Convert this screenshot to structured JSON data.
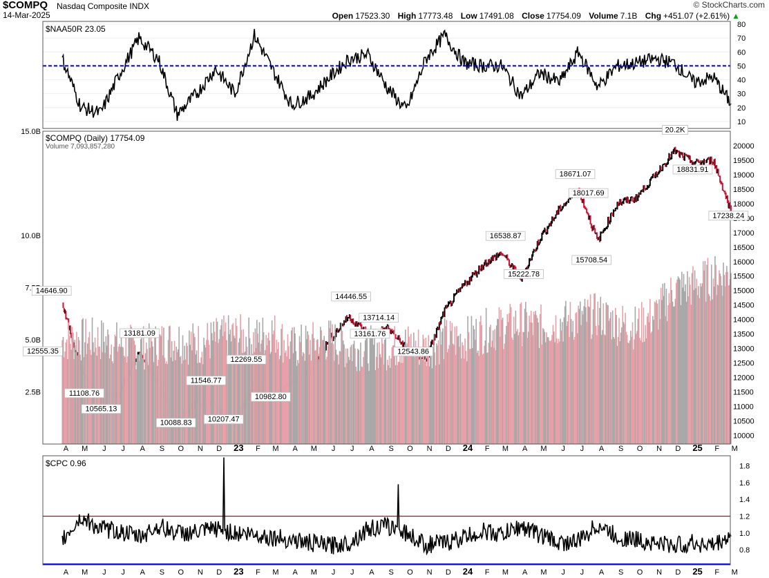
{
  "header": {
    "symbol": "$COMPQ",
    "name": "Nasdaq Composite INDX",
    "date": "14-Mar-2025",
    "brand": "© StockCharts.com",
    "open_label": "Open",
    "open": "17523.30",
    "high_label": "High",
    "high": "17773.48",
    "low_label": "Low",
    "low": "17491.08",
    "close_label": "Close",
    "close": "17754.09",
    "volume_label": "Volume",
    "volume": "7.1B",
    "chg_label": "Chg",
    "chg": "+451.07 (+2.61%)"
  },
  "colors": {
    "up": "#000000",
    "down": "#cc1133",
    "vol_up": "#a8a8a8",
    "vol_down": "#e8a0a8",
    "ref_blue": "#0000cc",
    "ref_red": "#cc0000"
  },
  "x_axis_labels": [
    "A",
    "M",
    "J",
    "J",
    "A",
    "S",
    "O",
    "N",
    "D",
    "23",
    "F",
    "M",
    "A",
    "M",
    "J",
    "J",
    "A",
    "S",
    "O",
    "N",
    "D",
    "24",
    "F",
    "M",
    "A",
    "M",
    "J",
    "J",
    "A",
    "S",
    "O",
    "N",
    "D",
    "25",
    "F",
    "M"
  ],
  "chart_data": [
    {
      "type": "line",
      "legend": "$NAA50R 23.05",
      "ylim": [
        5,
        82
      ],
      "y_ticks": [
        10,
        20,
        30,
        40,
        50,
        60,
        70,
        80
      ],
      "reference_line": 50,
      "x": [
        "2022-04",
        "2022-05",
        "2022-06",
        "2022-07",
        "2022-08",
        "2022-09",
        "2022-10",
        "2022-11",
        "2022-12",
        "2023-01",
        "2023-02",
        "2023-03",
        "2023-04",
        "2023-05",
        "2023-06",
        "2023-07",
        "2023-08",
        "2023-09",
        "2023-10",
        "2023-11",
        "2023-12",
        "2024-01",
        "2024-02",
        "2024-03",
        "2024-04",
        "2024-05",
        "2024-06",
        "2024-07",
        "2024-08",
        "2024-09",
        "2024-10",
        "2024-11",
        "2024-12",
        "2025-01",
        "2025-02",
        "2025-03"
      ],
      "values": [
        55,
        20,
        16,
        44,
        70,
        55,
        15,
        30,
        48,
        30,
        72,
        48,
        22,
        28,
        42,
        55,
        58,
        34,
        18,
        55,
        72,
        52,
        50,
        50,
        28,
        45,
        38,
        60,
        35,
        50,
        52,
        55,
        52,
        38,
        42,
        23
      ]
    },
    {
      "type": "line",
      "legend": "$COMPQ (Daily) 17754.09",
      "volume_legend": "Volume 7,093,857,280",
      "ylim": [
        9700,
        20500
      ],
      "y_ticks": [
        10000,
        10500,
        11000,
        11500,
        12000,
        12500,
        13000,
        13500,
        14000,
        14500,
        15000,
        15500,
        16000,
        16500,
        17000,
        17500,
        18000,
        18500,
        19000,
        19500,
        20000
      ],
      "x": [
        "2022-04",
        "2022-05",
        "2022-06",
        "2022-07",
        "2022-08",
        "2022-09",
        "2022-10",
        "2022-11",
        "2022-12",
        "2023-01",
        "2023-02",
        "2023-03",
        "2023-04",
        "2023-05",
        "2023-06",
        "2023-07",
        "2023-08",
        "2023-09",
        "2023-10",
        "2023-11",
        "2023-12",
        "2024-01",
        "2024-02",
        "2024-03",
        "2024-04",
        "2024-05",
        "2024-06",
        "2024-07",
        "2024-08",
        "2024-09",
        "2024-10",
        "2024-11",
        "2024-12",
        "2025-01",
        "2025-02",
        "2025-03"
      ],
      "values": [
        14500,
        12300,
        11100,
        11500,
        12800,
        11800,
        10500,
        11200,
        11000,
        10400,
        11900,
        11300,
        11800,
        12200,
        13300,
        14100,
        13500,
        13700,
        13000,
        12600,
        14300,
        15200,
        15900,
        16300,
        15400,
        16800,
        17800,
        18500,
        16700,
        18000,
        18200,
        19000,
        19800,
        19400,
        19500,
        17754
      ],
      "annotations": [
        {
          "x": "2022-03-29",
          "y": 14646.9,
          "label": "14646.90"
        },
        {
          "x": "2022-03-15",
          "y": 12555.35,
          "label": "12555.35"
        },
        {
          "x": "2022-05-20",
          "y": 11108.76,
          "label": "11108.76"
        },
        {
          "x": "2022-06-16",
          "y": 10565.13,
          "label": "10565.13"
        },
        {
          "x": "2022-08-16",
          "y": 13181.09,
          "label": "13181.09"
        },
        {
          "x": "2022-10-13",
          "y": 10088.83,
          "label": "10088.83"
        },
        {
          "x": "2022-11-30",
          "y": 11546.77,
          "label": "11546.77"
        },
        {
          "x": "2022-12-28",
          "y": 10207.47,
          "label": "10207.47"
        },
        {
          "x": "2023-02-02",
          "y": 12269.55,
          "label": "12269.55"
        },
        {
          "x": "2023-03-13",
          "y": 10982.8,
          "label": "10982.80"
        },
        {
          "x": "2023-07-19",
          "y": 14446.55,
          "label": "14446.55"
        },
        {
          "x": "2023-08-18",
          "y": 13161.76,
          "label": "13161.76"
        },
        {
          "x": "2023-09-01",
          "y": 13714.14,
          "label": "13714.14"
        },
        {
          "x": "2023-10-26",
          "y": 12543.86,
          "label": "12543.86"
        },
        {
          "x": "2024-03-21",
          "y": 16538.87,
          "label": "16538.87"
        },
        {
          "x": "2024-04-19",
          "y": 15222.78,
          "label": "15222.78"
        },
        {
          "x": "2024-07-10",
          "y": 18671.07,
          "label": "18671.07"
        },
        {
          "x": "2024-07-31",
          "y": 18017.69,
          "label": "18017.69"
        },
        {
          "x": "2024-08-05",
          "y": 15708.54,
          "label": "15708.54"
        },
        {
          "x": "2024-12-16",
          "y": 20200,
          "label": "20.2K"
        },
        {
          "x": "2025-01-13",
          "y": 18831.91,
          "label": "18831.91"
        },
        {
          "x": "2025-03-11",
          "y": 17238.24,
          "label": "17238.24"
        }
      ]
    },
    {
      "type": "bar",
      "name": "Volume",
      "ylim": [
        0,
        15
      ],
      "y_ticks": [
        {
          "v": 2.5,
          "label": "2.5B"
        },
        {
          "v": 5.0,
          "label": "5.0B"
        },
        {
          "v": 7.5,
          "label": "7.5B"
        },
        {
          "v": 10.0,
          "label": "10.0B"
        },
        {
          "v": 15.0,
          "label": "15.0B"
        }
      ],
      "x": [
        "2022-04",
        "2022-05",
        "2022-06",
        "2022-07",
        "2022-08",
        "2022-09",
        "2022-10",
        "2022-11",
        "2022-12",
        "2023-01",
        "2023-02",
        "2023-03",
        "2023-04",
        "2023-05",
        "2023-06",
        "2023-07",
        "2023-08",
        "2023-09",
        "2023-10",
        "2023-11",
        "2023-12",
        "2024-01",
        "2024-02",
        "2024-03",
        "2024-04",
        "2024-05",
        "2024-06",
        "2024-07",
        "2024-08",
        "2024-09",
        "2024-10",
        "2024-11",
        "2024-12",
        "2025-01",
        "2025-02",
        "2025-03"
      ],
      "values": [
        5.0,
        5.0,
        5.0,
        4.8,
        4.6,
        4.8,
        5.0,
        4.8,
        5.0,
        5.2,
        5.0,
        5.4,
        4.6,
        4.8,
        5.0,
        4.6,
        4.6,
        4.6,
        4.8,
        4.6,
        5.0,
        5.0,
        5.4,
        5.6,
        5.8,
        5.6,
        5.8,
        6.0,
        6.2,
        5.8,
        5.6,
        6.2,
        7.4,
        7.6,
        8.0,
        8.2
      ]
    },
    {
      "type": "line",
      "legend": "$CPC 0.96",
      "ylim": [
        0.62,
        1.92
      ],
      "y_ticks": [
        0.8,
        1.0,
        1.2,
        1.4,
        1.6,
        1.8
      ],
      "reference_line": 1.2,
      "x": [
        "2022-04",
        "2022-05",
        "2022-06",
        "2022-07",
        "2022-08",
        "2022-09",
        "2022-10",
        "2022-11",
        "2022-12",
        "2023-01",
        "2023-02",
        "2023-03",
        "2023-04",
        "2023-05",
        "2023-06",
        "2023-07",
        "2023-08",
        "2023-09",
        "2023-10",
        "2023-11",
        "2023-12",
        "2024-01",
        "2024-02",
        "2024-03",
        "2024-04",
        "2024-05",
        "2024-06",
        "2024-07",
        "2024-08",
        "2024-09",
        "2024-10",
        "2024-11",
        "2024-12",
        "2025-01",
        "2025-02",
        "2025-03"
      ],
      "values": [
        0.92,
        1.18,
        1.05,
        1.02,
        0.95,
        1.08,
        1.0,
        1.0,
        1.05,
        1.0,
        0.98,
        0.95,
        0.92,
        0.88,
        0.85,
        0.88,
        1.05,
        1.08,
        1.0,
        0.86,
        0.88,
        0.95,
        1.02,
        0.98,
        1.08,
        0.98,
        0.88,
        0.9,
        1.1,
        0.95,
        0.92,
        0.88,
        0.85,
        0.88,
        0.85,
        0.96
      ],
      "spikes": [
        {
          "x": "2022-12-28",
          "value": 1.9
        },
        {
          "x": "2023-10-02",
          "value": 1.58
        }
      ]
    }
  ]
}
